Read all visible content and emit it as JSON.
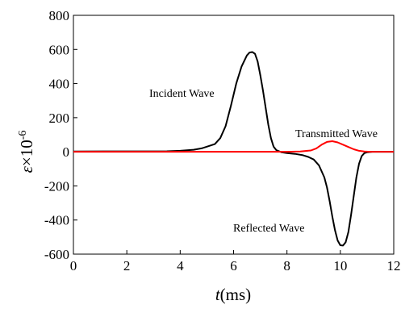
{
  "chart_data": {
    "type": "line",
    "xlabel_italic": "t",
    "xlabel_unit": "(ms)",
    "ylabel_symbol": "ε",
    "ylabel_times": "×10",
    "ylabel_exponent": "-6",
    "xlim": [
      0,
      12
    ],
    "ylim": [
      -600,
      800
    ],
    "x_ticks": [
      0,
      2,
      4,
      6,
      8,
      10,
      12
    ],
    "y_ticks": [
      -600,
      -400,
      -200,
      0,
      200,
      400,
      600,
      800
    ],
    "grid": false,
    "annotations": {
      "incident": "Incident Wave",
      "transmitted": "Transmitted Wave",
      "reflected": "Reflected Wave"
    },
    "series": [
      {
        "color": "#000000",
        "x": [
          0,
          3.5,
          4.0,
          4.5,
          4.8,
          5.0,
          5.3,
          5.5,
          5.7,
          5.9,
          6.1,
          6.3,
          6.5,
          6.6,
          6.7,
          6.8,
          6.9,
          7.0,
          7.1,
          7.2,
          7.3,
          7.4,
          7.5,
          7.6,
          7.8,
          8.0,
          8.3,
          8.6,
          8.8,
          9.0,
          9.2,
          9.4,
          9.5,
          9.6,
          9.7,
          9.8,
          9.9,
          10.0,
          10.1,
          10.2,
          10.3,
          10.4,
          10.5,
          10.6,
          10.7,
          10.8,
          10.9,
          11.0,
          11.2,
          11.5,
          12.0
        ],
        "y": [
          2,
          3,
          6,
          12,
          20,
          30,
          45,
          80,
          150,
          270,
          400,
          500,
          565,
          582,
          585,
          575,
          530,
          450,
          360,
          260,
          160,
          80,
          30,
          10,
          -3,
          -8,
          -12,
          -20,
          -30,
          -45,
          -80,
          -150,
          -210,
          -290,
          -380,
          -460,
          -520,
          -548,
          -550,
          -530,
          -470,
          -370,
          -260,
          -150,
          -70,
          -25,
          -8,
          -3,
          0,
          0,
          0
        ]
      },
      {
        "color": "#ff0000",
        "x": [
          0,
          1.0,
          2.0,
          3.0,
          4.0,
          5.0,
          6.0,
          7.0,
          8.0,
          8.5,
          8.9,
          9.1,
          9.3,
          9.5,
          9.7,
          9.9,
          10.1,
          10.3,
          10.5,
          10.7,
          10.9,
          11.1,
          11.5,
          12.0
        ],
        "y": [
          0,
          0,
          0,
          0,
          0,
          0,
          0,
          0,
          0,
          2,
          8,
          20,
          42,
          58,
          62,
          55,
          42,
          28,
          15,
          6,
          2,
          0,
          0,
          0
        ]
      }
    ]
  }
}
